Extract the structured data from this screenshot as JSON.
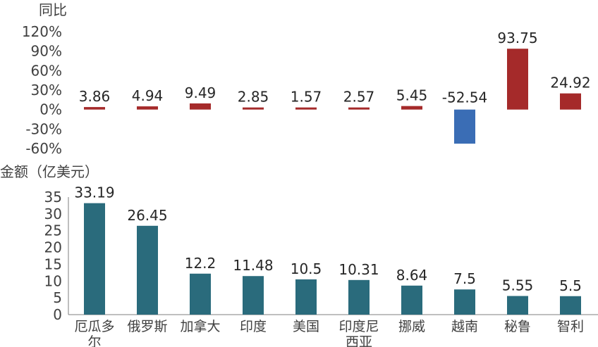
{
  "chart_data": [
    {
      "type": "bar",
      "ylabel": "同比",
      "y_tick_labels": [
        "120%",
        "90%",
        "60%",
        "30%",
        "0%",
        "-30%",
        "-60%"
      ],
      "y_ticks": [
        120,
        90,
        60,
        30,
        0,
        -30,
        -60
      ],
      "ylim": [
        -60,
        120
      ],
      "categories": [
        "厄瓜多尔",
        "俄罗斯",
        "加拿大",
        "印度",
        "美国",
        "印度尼西亚",
        "挪威",
        "越南",
        "秘鲁",
        "智利"
      ],
      "values": [
        3.86,
        4.94,
        9.49,
        2.85,
        1.57,
        2.57,
        5.45,
        -52.54,
        93.75,
        24.92
      ],
      "value_labels": [
        "3.86",
        "4.94",
        "9.49",
        "2.85",
        "1.57",
        "2.57",
        "5.45",
        "-52.54",
        "93.75",
        "24.92"
      ],
      "positive_color": "#A52A2A",
      "negative_color": "#3A6DB5",
      "grid": false
    },
    {
      "type": "bar",
      "ylabel": "金额（亿美元）",
      "y_ticks": [
        0,
        5,
        10,
        15,
        20,
        25,
        30,
        35
      ],
      "y_tick_labels": [
        "0",
        "5",
        "10",
        "15",
        "20",
        "25",
        "30",
        "35"
      ],
      "ylim": [
        0,
        35
      ],
      "categories": [
        "厄瓜多尔",
        "俄罗斯",
        "加拿大",
        "印度",
        "美国",
        "印度尼西亚",
        "挪威",
        "越南",
        "秘鲁",
        "智利"
      ],
      "category_labels": [
        [
          "厄瓜多",
          "尔"
        ],
        [
          "俄罗斯"
        ],
        [
          "加拿大"
        ],
        [
          "印度"
        ],
        [
          "美国"
        ],
        [
          "印度尼",
          "西亚"
        ],
        [
          "挪威"
        ],
        [
          "越南"
        ],
        [
          "秘鲁"
        ],
        [
          "智利"
        ]
      ],
      "values": [
        33.19,
        26.45,
        12.2,
        11.48,
        10.5,
        10.31,
        8.64,
        7.5,
        5.55,
        5.5
      ],
      "value_labels": [
        "33.19",
        "26.45",
        "12.2",
        "11.48",
        "10.5",
        "10.31",
        "8.64",
        "7.5",
        "5.55",
        "5.5"
      ],
      "color": "#2A6B7C",
      "grid": false
    }
  ]
}
